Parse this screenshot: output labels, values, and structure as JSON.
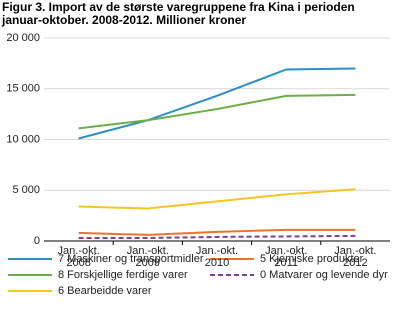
{
  "chart_data": {
    "type": "line",
    "title": "Figur 3. Import av de største varegruppene fra Kina i perioden januar-oktober. 2008-2012. Millioner kroner",
    "categories": [
      "Jan.-okt. 2008",
      "Jan.-okt. 2009",
      "Jan.-okt. 2010",
      "Jan.-okt. 2011",
      "Jan.-okt. 2012"
    ],
    "series": [
      {
        "name": "7 Maskiner og transportmidler",
        "color": "#2e8ec8",
        "values": [
          10100,
          11900,
          14300,
          16900,
          17000
        ]
      },
      {
        "name": "8 Forskjellige ferdige varer",
        "color": "#6aaf45",
        "values": [
          11100,
          11900,
          13000,
          14300,
          14400
        ]
      },
      {
        "name": "6 Bearbeidde varer",
        "color": "#f7c51e",
        "values": [
          3400,
          3200,
          3900,
          4600,
          5100
        ]
      },
      {
        "name": "5 Kjemiske produkter",
        "color": "#e8772e",
        "values": [
          800,
          600,
          900,
          1100,
          1100
        ]
      },
      {
        "name": "0 Matvarer og levende dyr",
        "color": "#7b3f9e",
        "values": [
          300,
          300,
          400,
          450,
          500
        ],
        "line_style": "dashed"
      }
    ],
    "ylim": [
      0,
      20000
    ],
    "yticks": [
      0,
      {
        "value": 5000,
        "label": "5 000"
      },
      {
        "value": 10000,
        "label": "10 000"
      },
      {
        "value": 15000,
        "label": "15 000"
      },
      {
        "value": 20000,
        "label": "20 000"
      }
    ],
    "grid": true
  }
}
